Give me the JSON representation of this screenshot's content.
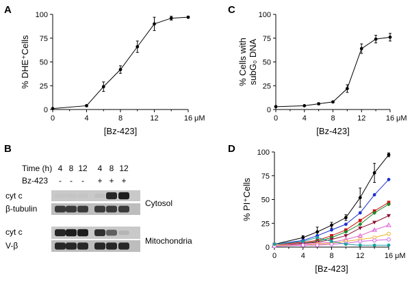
{
  "panels": {
    "A": {
      "label": "A"
    },
    "B": {
      "label": "B"
    },
    "C": {
      "label": "C"
    },
    "D": {
      "label": "D"
    }
  },
  "chart_data": [
    {
      "panel": "A",
      "type": "line",
      "xlabel": "[Bz-423]",
      "xunit": "μM",
      "ylabel": "% DHE⁺Cells",
      "xlim": [
        0,
        16
      ],
      "ylim": [
        0,
        100
      ],
      "xticks": [
        0,
        4,
        8,
        12,
        16
      ],
      "yticks": [
        0,
        25,
        50,
        75,
        100
      ],
      "x": [
        0,
        4,
        6,
        8,
        10,
        12,
        14,
        16
      ],
      "series": [
        {
          "values": [
            1,
            4,
            24,
            42,
            66,
            90,
            96,
            97
          ],
          "errors": [
            0,
            1,
            5,
            4,
            6,
            7,
            2,
            1
          ]
        }
      ]
    },
    {
      "panel": "C",
      "type": "line",
      "xlabel": "[Bz-423]",
      "xunit": "μM",
      "ylabel_lines": [
        "% Cells with",
        "subG₀ DNA"
      ],
      "xlim": [
        0,
        16
      ],
      "ylim": [
        0,
        100
      ],
      "xticks": [
        0,
        4,
        8,
        12,
        16
      ],
      "yticks": [
        0,
        25,
        50,
        75,
        100
      ],
      "x": [
        0,
        4,
        6,
        8,
        10,
        12,
        14,
        16
      ],
      "series": [
        {
          "values": [
            3,
            4,
            6,
            8,
            22,
            64,
            74,
            76
          ],
          "errors": [
            0,
            0,
            1,
            1,
            4,
            5,
            4,
            4
          ]
        }
      ]
    },
    {
      "panel": "D",
      "type": "line",
      "xlabel": "[Bz-423]",
      "xunit": "μM",
      "ylabel": "% PI⁺Cells",
      "xlim": [
        0,
        16
      ],
      "ylim": [
        0,
        100
      ],
      "xticks": [
        0,
        4,
        8,
        12,
        16
      ],
      "yticks": [
        0,
        25,
        50,
        75,
        100
      ],
      "x": [
        0,
        4,
        6,
        8,
        10,
        12,
        14,
        16
      ],
      "series": [
        {
          "color": "#000000",
          "marker": "circle",
          "values": [
            3,
            10,
            16,
            23,
            31,
            52,
            78,
            97
          ],
          "errors": [
            0,
            2,
            5,
            3,
            3,
            10,
            10,
            2
          ]
        },
        {
          "color": "#1a2fd0",
          "marker": "circle",
          "values": [
            3,
            7,
            12,
            18,
            24,
            36,
            55,
            71
          ],
          "errors": [
            0,
            0,
            0,
            0,
            0,
            0,
            0,
            0
          ]
        },
        {
          "color": "#cc1111",
          "marker": "square",
          "values": [
            3,
            5,
            7,
            12,
            18,
            28,
            38,
            47
          ],
          "errors": [
            0,
            0,
            0,
            0,
            0,
            0,
            0,
            0
          ]
        },
        {
          "color": "#1a8a2a",
          "marker": "diamond",
          "values": [
            2,
            4,
            6,
            10,
            16,
            24,
            36,
            45
          ],
          "errors": [
            0,
            0,
            0,
            0,
            0,
            0,
            0,
            0
          ]
        },
        {
          "color": "#8a1030",
          "marker": "triangle-down",
          "values": [
            2,
            4,
            5,
            8,
            12,
            20,
            26,
            33
          ],
          "errors": [
            0,
            0,
            0,
            0,
            0,
            0,
            0,
            0
          ]
        },
        {
          "color": "#e060d0",
          "marker": "triangle-up",
          "values": [
            2,
            3,
            4,
            5,
            8,
            12,
            18,
            23
          ],
          "errors": [
            0,
            0,
            0,
            0,
            0,
            0,
            0,
            0
          ]
        },
        {
          "color": "#f0b020",
          "marker": "circle-open",
          "values": [
            2,
            2,
            3,
            4,
            6,
            8,
            10,
            14
          ],
          "errors": [
            0,
            0,
            0,
            0,
            0,
            0,
            0,
            0
          ]
        },
        {
          "color": "#d060e0",
          "marker": "circle-open",
          "values": [
            1,
            2,
            2,
            3,
            4,
            6,
            7,
            8
          ],
          "errors": [
            0,
            0,
            0,
            0,
            0,
            0,
            0,
            0
          ]
        },
        {
          "color": "#18a0a0",
          "marker": "circle",
          "values": [
            3,
            6,
            10,
            6,
            3,
            2,
            2,
            2
          ],
          "errors": [
            0,
            0,
            0,
            0,
            0,
            0,
            0,
            0
          ]
        }
      ]
    }
  ],
  "blot": {
    "time_label": "Time (h)",
    "times": [
      "4",
      "8",
      "12",
      "4",
      "8",
      "12"
    ],
    "treatment_label": "Bz-423",
    "treatments": [
      "-",
      "-",
      "-",
      "+",
      "+",
      "+"
    ],
    "rows": [
      {
        "label": "cyt c",
        "group": "cytosol",
        "intensities": [
          0.02,
          0.02,
          0.02,
          0.05,
          0.85,
          0.9
        ]
      },
      {
        "label": "β-tubulin",
        "group": "cytosol",
        "intensities": [
          0.75,
          0.75,
          0.75,
          0.75,
          0.75,
          0.75
        ]
      },
      {
        "label": "cyt c",
        "group": "mito",
        "intensities": [
          0.85,
          0.9,
          0.9,
          0.8,
          0.55,
          0.1
        ]
      },
      {
        "label": "V-β",
        "group": "mito",
        "intensities": [
          0.85,
          0.85,
          0.85,
          0.85,
          0.85,
          0.85
        ]
      }
    ],
    "group_labels": {
      "cytosol": "Cytosol",
      "mito": "Mitochondria"
    }
  }
}
